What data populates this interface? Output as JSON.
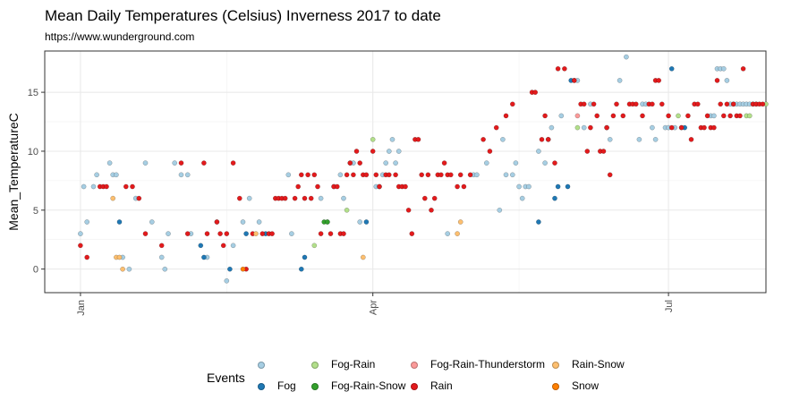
{
  "chart_data": {
    "type": "scatter",
    "title": "Mean Daily Temperatures (Celsius) Inverness 2017 to date",
    "subtitle": "https://www.wunderground.com",
    "xlabel": "",
    "ylabel": "Mean_TemperatureC",
    "x_ticks": [
      "Jan",
      "Apr",
      "Jul"
    ],
    "y_ticks": [
      0,
      5,
      10,
      15
    ],
    "x_range": [
      "2016-12-21",
      "2017-07-31"
    ],
    "ylim": [
      -2,
      18.5
    ],
    "grid": true,
    "legend_position": "bottom",
    "legend_title": "Events",
    "categories": [
      {
        "name": "",
        "color": "#A6CEE3"
      },
      {
        "name": "Fog",
        "color": "#1F78B4"
      },
      {
        "name": "Fog-Rain",
        "color": "#B2DF8A"
      },
      {
        "name": "Fog-Rain-Snow",
        "color": "#33A02C"
      },
      {
        "name": "Fog-Rain-Thunderstorm",
        "color": "#FB9A99"
      },
      {
        "name": "Rain",
        "color": "#E31A1C"
      },
      {
        "name": "Rain-Snow",
        "color": "#FDBF6F"
      },
      {
        "name": "Snow",
        "color": "#FF7F00"
      }
    ],
    "series": [
      {
        "name": "",
        "x": [
          "2017-01-01",
          "2017-01-02",
          "2017-01-03",
          "2017-01-05",
          "2017-01-06",
          "2017-01-10",
          "2017-01-11",
          "2017-01-12",
          "2017-01-14",
          "2017-01-16",
          "2017-01-18",
          "2017-01-21",
          "2017-01-23",
          "2017-01-26",
          "2017-01-27",
          "2017-01-28",
          "2017-01-30",
          "2017-02-01",
          "2017-02-03",
          "2017-02-04",
          "2017-02-09",
          "2017-02-12",
          "2017-02-15",
          "2017-02-17",
          "2017-02-20",
          "2017-02-22",
          "2017-02-25",
          "2017-03-06",
          "2017-03-07",
          "2017-03-16",
          "2017-03-18",
          "2017-03-20",
          "2017-03-22",
          "2017-03-23",
          "2017-03-25",
          "2017-03-26",
          "2017-03-28",
          "2017-04-02",
          "2017-04-03",
          "2017-04-04",
          "2017-04-05",
          "2017-04-06",
          "2017-04-07",
          "2017-04-08",
          "2017-04-09",
          "2017-04-24",
          "2017-05-02",
          "2017-05-03",
          "2017-05-06",
          "2017-05-10",
          "2017-05-11",
          "2017-05-12",
          "2017-05-14",
          "2017-05-15",
          "2017-05-16",
          "2017-05-17",
          "2017-05-18",
          "2017-05-19",
          "2017-05-22",
          "2017-05-24",
          "2017-05-25",
          "2017-05-26",
          "2017-05-29",
          "2017-06-02",
          "2017-06-03",
          "2017-06-05",
          "2017-06-07",
          "2017-06-12",
          "2017-06-13",
          "2017-06-16",
          "2017-06-18",
          "2017-06-22",
          "2017-06-23",
          "2017-06-24",
          "2017-06-26",
          "2017-06-27",
          "2017-06-30",
          "2017-07-01",
          "2017-07-03",
          "2017-07-05",
          "2017-07-14",
          "2017-07-15",
          "2017-07-16",
          "2017-07-17",
          "2017-07-18",
          "2017-07-19",
          "2017-07-20",
          "2017-07-21",
          "2017-07-22",
          "2017-07-23",
          "2017-07-24",
          "2017-07-25",
          "2017-07-26",
          "2017-07-27",
          "2017-07-28"
        ],
        "y": [
          3,
          7,
          4,
          7,
          8,
          9,
          8,
          8,
          1,
          0,
          6,
          9,
          4,
          1,
          0,
          3,
          9,
          8,
          8,
          3,
          1,
          4,
          -1,
          2,
          4,
          6,
          4,
          8,
          3,
          6,
          4,
          7,
          8,
          6,
          9,
          9,
          4,
          7,
          7,
          8,
          9,
          10,
          11,
          9,
          10,
          3,
          8,
          8,
          9,
          5,
          11,
          8,
          8,
          9,
          7,
          6,
          7,
          7,
          10,
          9,
          11,
          12,
          13,
          16,
          16,
          12,
          14,
          12,
          11,
          16,
          18,
          11,
          14,
          14,
          12,
          11,
          12,
          12,
          12,
          12,
          13,
          13,
          17,
          17,
          17,
          16,
          14,
          14,
          14,
          14,
          14,
          14,
          14,
          14,
          14
        ]
      },
      {
        "name": "Fog",
        "x": [
          "2017-01-13",
          "2017-02-07",
          "2017-02-08",
          "2017-02-16",
          "2017-02-21",
          "2017-02-27",
          "2017-03-10",
          "2017-03-11",
          "2017-03-30",
          "2017-05-22",
          "2017-05-27",
          "2017-05-28",
          "2017-05-31",
          "2017-06-01",
          "2017-07-02",
          "2017-07-06"
        ],
        "y": [
          4,
          2,
          1,
          0,
          3,
          3,
          0,
          1,
          4,
          4,
          6,
          7,
          7,
          16,
          17,
          12
        ]
      },
      {
        "name": "Fog-Rain",
        "x": [
          "2017-03-14",
          "2017-03-24",
          "2017-04-01",
          "2017-06-03",
          "2017-07-04",
          "2017-07-25",
          "2017-07-26",
          "2017-07-31"
        ],
        "y": [
          2,
          5,
          11,
          12,
          13,
          13,
          13,
          14
        ]
      },
      {
        "name": "Fog-Rain-Snow",
        "x": [
          "2017-03-17",
          "2017-03-18"
        ],
        "y": [
          4,
          4
        ]
      },
      {
        "name": "Fog-Rain-Thunderstorm",
        "x": [
          "2017-06-03"
        ],
        "y": [
          13
        ]
      },
      {
        "name": "Rain",
        "x": [
          "2017-01-01",
          "2017-01-03",
          "2017-01-07",
          "2017-01-08",
          "2017-01-09",
          "2017-01-15",
          "2017-01-17",
          "2017-01-19",
          "2017-01-21",
          "2017-01-26",
          "2017-02-01",
          "2017-02-03",
          "2017-02-08",
          "2017-02-09",
          "2017-02-12",
          "2017-02-13",
          "2017-02-14",
          "2017-02-15",
          "2017-02-17",
          "2017-02-19",
          "2017-02-21",
          "2017-02-23",
          "2017-02-26",
          "2017-02-28",
          "2017-03-01",
          "2017-03-02",
          "2017-03-03",
          "2017-03-04",
          "2017-03-05",
          "2017-03-08",
          "2017-03-09",
          "2017-03-10",
          "2017-03-11",
          "2017-03-12",
          "2017-03-13",
          "2017-03-14",
          "2017-03-15",
          "2017-03-16",
          "2017-03-19",
          "2017-03-20",
          "2017-03-21",
          "2017-03-22",
          "2017-03-23",
          "2017-03-24",
          "2017-03-25",
          "2017-03-26",
          "2017-03-27",
          "2017-03-28",
          "2017-03-29",
          "2017-03-30",
          "2017-04-01",
          "2017-04-02",
          "2017-04-03",
          "2017-04-05",
          "2017-04-06",
          "2017-04-08",
          "2017-04-09",
          "2017-04-10",
          "2017-04-11",
          "2017-04-12",
          "2017-04-13",
          "2017-04-14",
          "2017-04-15",
          "2017-04-16",
          "2017-04-17",
          "2017-04-18",
          "2017-04-19",
          "2017-04-20",
          "2017-04-21",
          "2017-04-22",
          "2017-04-23",
          "2017-04-24",
          "2017-04-25",
          "2017-04-27",
          "2017-04-28",
          "2017-04-29",
          "2017-05-01",
          "2017-05-05",
          "2017-05-07",
          "2017-05-09",
          "2017-05-12",
          "2017-05-14",
          "2017-05-20",
          "2017-05-21",
          "2017-05-23",
          "2017-05-24",
          "2017-05-25",
          "2017-05-27",
          "2017-05-28",
          "2017-05-30",
          "2017-06-02",
          "2017-06-04",
          "2017-06-05",
          "2017-06-06",
          "2017-06-07",
          "2017-06-08",
          "2017-06-09",
          "2017-06-10",
          "2017-06-11",
          "2017-06-12",
          "2017-06-13",
          "2017-06-14",
          "2017-06-15",
          "2017-06-17",
          "2017-06-19",
          "2017-06-20",
          "2017-06-21",
          "2017-06-23",
          "2017-06-25",
          "2017-06-26",
          "2017-06-27",
          "2017-06-28",
          "2017-06-29",
          "2017-07-01",
          "2017-07-02",
          "2017-07-05",
          "2017-07-07",
          "2017-07-08",
          "2017-07-09",
          "2017-07-10",
          "2017-07-11",
          "2017-07-12",
          "2017-07-13",
          "2017-07-14",
          "2017-07-15",
          "2017-07-16",
          "2017-07-17",
          "2017-07-18",
          "2017-07-19",
          "2017-07-20",
          "2017-07-21",
          "2017-07-22",
          "2017-07-23",
          "2017-07-24",
          "2017-07-27",
          "2017-07-28",
          "2017-07-29",
          "2017-07-30"
        ],
        "y": [
          2,
          1,
          7,
          7,
          7,
          7,
          7,
          6,
          3,
          2,
          9,
          3,
          9,
          3,
          4,
          3,
          2,
          3,
          9,
          6,
          0,
          3,
          3,
          3,
          3,
          6,
          6,
          6,
          6,
          6,
          7,
          8,
          6,
          8,
          6,
          8,
          7,
          3,
          3,
          7,
          7,
          3,
          3,
          8,
          9,
          8,
          10,
          9,
          8,
          8,
          10,
          8,
          7,
          8,
          8,
          8,
          7,
          7,
          7,
          5,
          3,
          11,
          11,
          8,
          6,
          8,
          5,
          6,
          8,
          8,
          9,
          8,
          8,
          7,
          8,
          7,
          8,
          11,
          10,
          12,
          13,
          14,
          15,
          15,
          11,
          13,
          11,
          9,
          17,
          17,
          16,
          14,
          14,
          10,
          12,
          14,
          13,
          10,
          10,
          12,
          8,
          13,
          14,
          13,
          14,
          14,
          14,
          13,
          14,
          14,
          16,
          16,
          14,
          13,
          12,
          12,
          13,
          11,
          14,
          14,
          12,
          12,
          13,
          12,
          12,
          16,
          14,
          13,
          14,
          13,
          14,
          13,
          13,
          17,
          14,
          14,
          14,
          14
        ]
      },
      {
        "name": "Rain-Snow",
        "x": [
          "2017-01-11",
          "2017-01-12",
          "2017-01-13",
          "2017-01-14",
          "2017-02-24",
          "2017-03-29",
          "2017-04-27",
          "2017-04-28"
        ],
        "y": [
          6,
          1,
          1,
          0,
          3,
          1,
          3,
          4
        ]
      },
      {
        "name": "Snow",
        "x": [
          "2017-02-20"
        ],
        "y": [
          0
        ]
      }
    ]
  }
}
